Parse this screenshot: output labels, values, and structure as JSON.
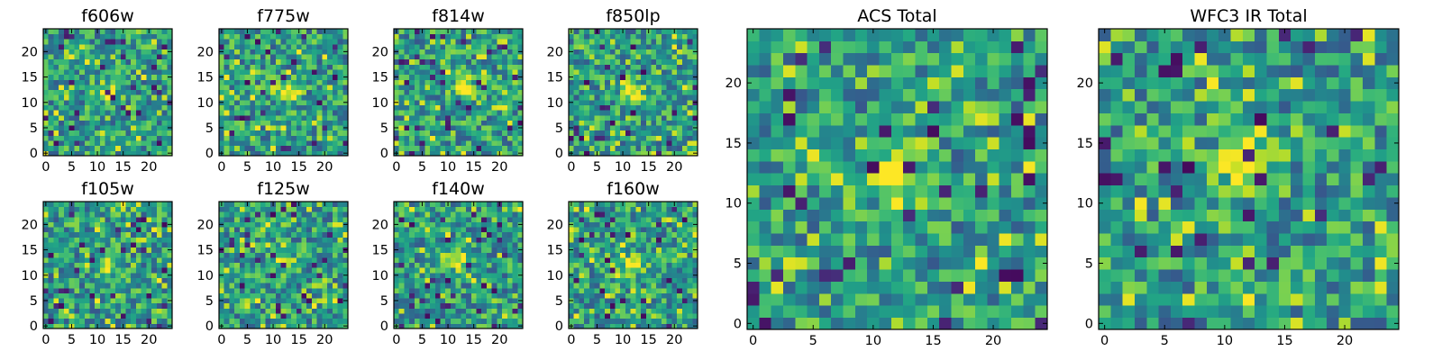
{
  "chart_data": [
    {
      "type": "heatmap",
      "title": "f606w",
      "grid_size": 25,
      "xlim": [
        -0.5,
        24.5
      ],
      "ylim": [
        -0.5,
        24.5
      ],
      "xticks": [
        0,
        5,
        10,
        15,
        20
      ],
      "yticks": [
        0,
        5,
        10,
        15,
        20
      ],
      "source_peak": [
        12,
        12
      ],
      "colormap": "viridis"
    },
    {
      "type": "heatmap",
      "title": "f775w",
      "grid_size": 25,
      "xlim": [
        -0.5,
        24.5
      ],
      "ylim": [
        -0.5,
        24.5
      ],
      "xticks": [
        0,
        5,
        10,
        15,
        20
      ],
      "yticks": [
        0,
        5,
        10,
        15,
        20
      ],
      "source_peak": [
        13,
        12
      ],
      "colormap": "viridis"
    },
    {
      "type": "heatmap",
      "title": "f814w",
      "grid_size": 25,
      "xlim": [
        -0.5,
        24.5
      ],
      "ylim": [
        -0.5,
        24.5
      ],
      "xticks": [
        0,
        5,
        10,
        15,
        20
      ],
      "yticks": [
        0,
        5,
        10,
        15,
        20
      ],
      "source_peak": [
        13,
        13
      ],
      "colormap": "viridis"
    },
    {
      "type": "heatmap",
      "title": "f850lp",
      "grid_size": 25,
      "xlim": [
        -0.5,
        24.5
      ],
      "ylim": [
        -0.5,
        24.5
      ],
      "xticks": [
        0,
        5,
        10,
        15,
        20
      ],
      "yticks": [
        0,
        5,
        10,
        15,
        20
      ],
      "source_peak": [
        12,
        12
      ],
      "colormap": "viridis"
    },
    {
      "type": "heatmap",
      "title": "ACS Total",
      "grid_size": 25,
      "xlim": [
        -0.5,
        24.5
      ],
      "ylim": [
        -0.5,
        24.5
      ],
      "xticks": [
        0,
        5,
        10,
        15,
        20
      ],
      "yticks": [
        0,
        5,
        10,
        15,
        20
      ],
      "source_peak": [
        12,
        12
      ],
      "colormap": "viridis"
    },
    {
      "type": "heatmap",
      "title": "WFC3 IR Total",
      "grid_size": 25,
      "xlim": [
        -0.5,
        24.5
      ],
      "ylim": [
        -0.5,
        24.5
      ],
      "xticks": [
        0,
        5,
        10,
        15,
        20
      ],
      "yticks": [
        0,
        5,
        10,
        15,
        20
      ],
      "source_peak": [
        12,
        13
      ],
      "colormap": "viridis"
    },
    {
      "type": "heatmap",
      "title": "f105w",
      "grid_size": 25,
      "xlim": [
        -0.5,
        24.5
      ],
      "ylim": [
        -0.5,
        24.5
      ],
      "xticks": [
        0,
        5,
        10,
        15,
        20
      ],
      "yticks": [
        0,
        5,
        10,
        15,
        20
      ],
      "source_peak": [
        12,
        12
      ],
      "colormap": "viridis"
    },
    {
      "type": "heatmap",
      "title": "f125w",
      "grid_size": 25,
      "xlim": [
        -0.5,
        24.5
      ],
      "ylim": [
        -0.5,
        24.5
      ],
      "xticks": [
        0,
        5,
        10,
        15,
        20
      ],
      "yticks": [
        0,
        5,
        10,
        15,
        20
      ],
      "source_peak": [
        12,
        13
      ],
      "colormap": "viridis"
    },
    {
      "type": "heatmap",
      "title": "f140w",
      "grid_size": 25,
      "xlim": [
        -0.5,
        24.5
      ],
      "ylim": [
        -0.5,
        24.5
      ],
      "xticks": [
        0,
        5,
        10,
        15,
        20
      ],
      "yticks": [
        0,
        5,
        10,
        15,
        20
      ],
      "source_peak": [
        12,
        13
      ],
      "colormap": "viridis"
    },
    {
      "type": "heatmap",
      "title": "f160w",
      "grid_size": 25,
      "xlim": [
        -0.5,
        24.5
      ],
      "ylim": [
        -0.5,
        24.5
      ],
      "xticks": [
        0,
        5,
        10,
        15,
        20
      ],
      "yticks": [
        0,
        5,
        10,
        15,
        20
      ],
      "source_peak": [
        12,
        12
      ],
      "colormap": "viridis"
    }
  ]
}
